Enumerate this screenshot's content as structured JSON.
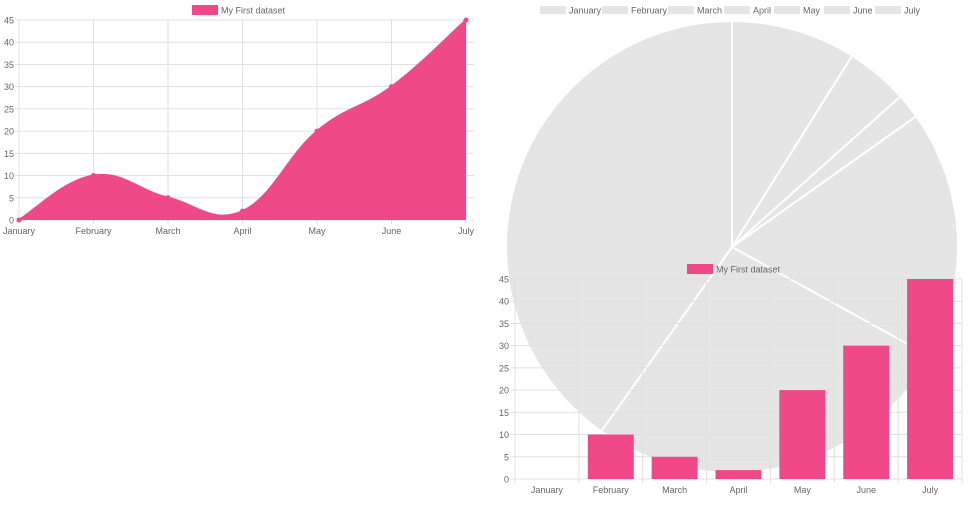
{
  "colors": {
    "accent": "#f0498a",
    "pie_fill": "#e5e5e5",
    "grid": "#e0e0e0",
    "axis_text": "#666666"
  },
  "chart_data": [
    {
      "type": "area",
      "title": "",
      "xlabel": "",
      "ylabel": "",
      "categories": [
        "January",
        "February",
        "March",
        "April",
        "May",
        "June",
        "July"
      ],
      "series": [
        {
          "name": "My First dataset",
          "values": [
            0,
            10,
            5,
            2,
            20,
            30,
            45
          ]
        }
      ],
      "ylim": [
        0,
        45
      ],
      "yticks": [
        0,
        5,
        10,
        15,
        20,
        25,
        30,
        35,
        40,
        45
      ],
      "grid": true,
      "legend": "top-center"
    },
    {
      "type": "pie",
      "title": "",
      "categories": [
        "January",
        "February",
        "March",
        "April",
        "May",
        "June",
        "July"
      ],
      "values": [
        0,
        10,
        5,
        2,
        20,
        30,
        45
      ],
      "legend": "top-center"
    },
    {
      "type": "bar",
      "title": "",
      "xlabel": "",
      "ylabel": "",
      "categories": [
        "January",
        "February",
        "March",
        "April",
        "May",
        "June",
        "July"
      ],
      "series": [
        {
          "name": "My First dataset",
          "values": [
            0,
            10,
            5,
            2,
            20,
            30,
            45
          ]
        }
      ],
      "ylim": [
        0,
        45
      ],
      "yticks": [
        0,
        5,
        10,
        15,
        20,
        25,
        30,
        35,
        40,
        45
      ],
      "grid": true,
      "legend": "top-center"
    }
  ]
}
